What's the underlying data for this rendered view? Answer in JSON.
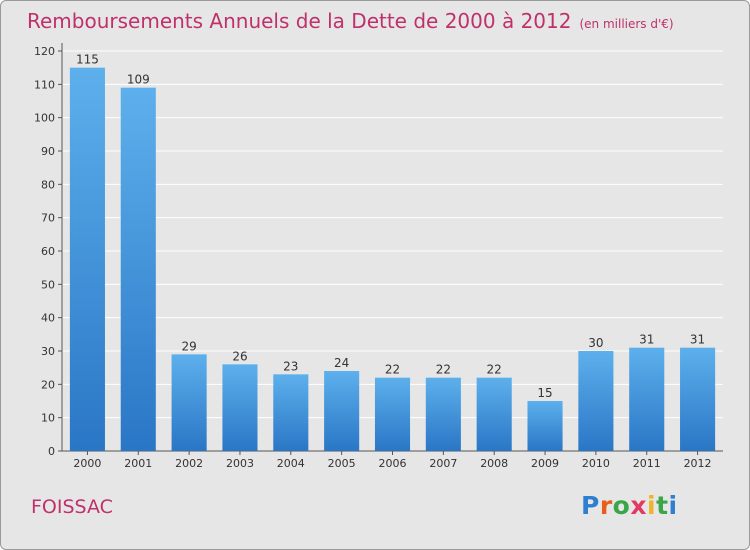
{
  "title": "Remboursements Annuels de la Dette de 2000 à 2012",
  "unit": "(en milliers d'€)",
  "commune": "FOISSAC",
  "logo": "Proxiti",
  "logo_colors": [
    "#2f7fd0",
    "#e85d1a",
    "#3aa648",
    "#e23a64",
    "#f2b32c",
    "#3aa648",
    "#2f7fd0"
  ],
  "colors": {
    "bar_top": "#5db0ec",
    "bar_bottom": "#2a76c6",
    "title": "#c0306a",
    "background": "#e6e6e6",
    "grid": "#ffffff"
  },
  "chart_data": {
    "type": "bar",
    "categories": [
      "2000",
      "2001",
      "2002",
      "2003",
      "2004",
      "2005",
      "2006",
      "2007",
      "2008",
      "2009",
      "2010",
      "2011",
      "2012"
    ],
    "values": [
      115,
      109,
      29,
      26,
      23,
      24,
      22,
      22,
      22,
      15,
      30,
      31,
      31
    ],
    "yticks": [
      0,
      10,
      20,
      30,
      40,
      50,
      60,
      70,
      80,
      90,
      100,
      110,
      120
    ],
    "ylim": [
      0,
      120
    ],
    "grid": true
  }
}
